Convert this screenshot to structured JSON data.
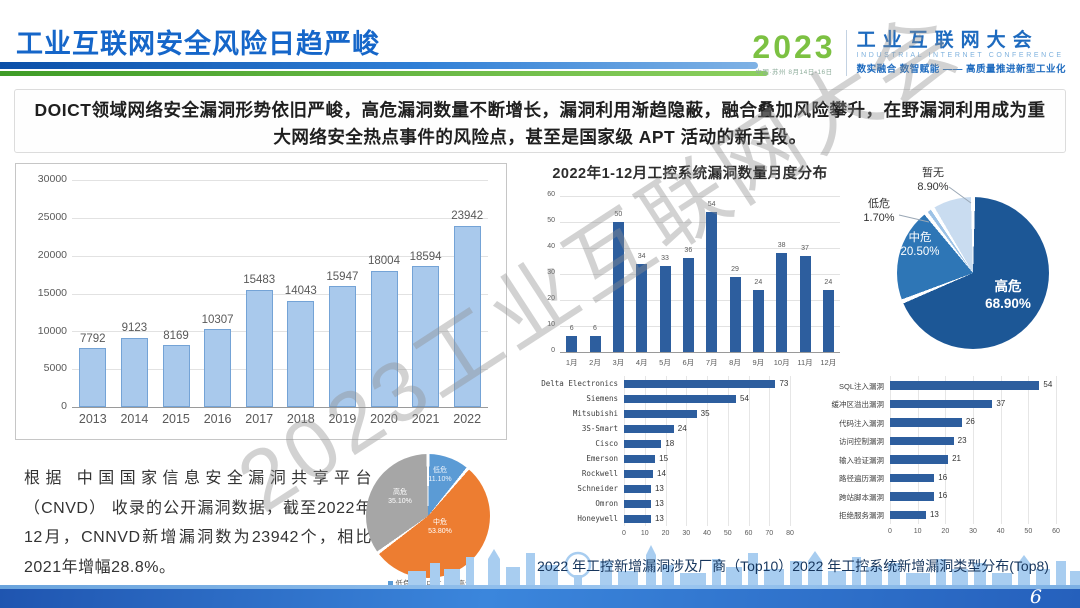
{
  "header": {
    "title": "工业互联网安全风险日趋严峻",
    "logo": {
      "year": "2023",
      "sub": "中国·苏州  8月14日-16日",
      "name": "工业互联网大会",
      "name_en": "INDUSTRIAL INTERNET CONFERENCE",
      "slogan": "数实融合  数智赋能 —— 高质量推进新型工业化"
    }
  },
  "banner": {
    "line1": "DOICT领域网络安全漏洞形势依旧严峻，高危漏洞数量不断增长，漏洞利用渐趋隐蔽，融合叠加风险攀升，在野漏洞利用成为重",
    "line2": "大网络安全热点事件的风险点，甚至是国家级 APT 活动的新手段。"
  },
  "note": "根据 中国国家信息安全漏洞共享平台（CNVD） 收录的公开漏洞数据，截至2022年12月，CNNVD新增漏洞数为23942个，相比2021年增幅28.8%。",
  "caption": "2022 年工控新增漏洞涉及厂商（Top10）2022 年工控系统新增漏洞类型分布(Top8)",
  "watermark": "2023工业互联网大会",
  "page_number": "6",
  "chart_data": [
    {
      "id": "cnvd-annual",
      "type": "bar",
      "title": "",
      "categories": [
        "2013",
        "2014",
        "2015",
        "2016",
        "2017",
        "2018",
        "2019",
        "2020",
        "2021",
        "2022"
      ],
      "values": [
        7792,
        9123,
        8169,
        10307,
        15483,
        14043,
        15947,
        18004,
        18594,
        23942
      ],
      "ylim": [
        0,
        30000
      ],
      "yticks": [
        0,
        5000,
        10000,
        15000,
        20000,
        25000,
        30000
      ],
      "bar_fill": "#a9c9ec",
      "bar_border": "#74a3d6",
      "grid": true
    },
    {
      "id": "monthly",
      "type": "bar",
      "title": "2022年1-12月工控系统漏洞数量月度分布",
      "categories": [
        "1月",
        "2月",
        "3月",
        "4月",
        "5月",
        "6月",
        "7月",
        "8月",
        "9月",
        "10月",
        "11月",
        "12月"
      ],
      "values": [
        6,
        6,
        50,
        34,
        33,
        36,
        54,
        29,
        24,
        38,
        37,
        24
      ],
      "ylim": [
        0,
        60
      ],
      "yticks": [
        0,
        10,
        20,
        30,
        40,
        50,
        60
      ],
      "bar_fill": "#2d5e9e",
      "grid": true
    },
    {
      "id": "severity-pie",
      "type": "pie",
      "slices": [
        {
          "label": "高危",
          "pct": "68.90%",
          "value": 68.9,
          "color": "#1c5796"
        },
        {
          "label": "中危",
          "pct": "20.50%",
          "value": 20.5,
          "color": "#2e76b6"
        },
        {
          "label": "低危",
          "pct": "1.70%",
          "value": 1.7,
          "color": "#9cc2e6"
        },
        {
          "label": "暂无",
          "pct": "8.90%",
          "value": 8.9,
          "color": "#c9dcf0"
        }
      ]
    },
    {
      "id": "vendors-top10",
      "type": "bar-horizontal",
      "categories": [
        "Delta Electronics",
        "Siemens",
        "Mitsubishi",
        "3S-Smart",
        "Cisco",
        "Emerson",
        "Rockwell",
        "Schneider",
        "Omron",
        "Honeywell"
      ],
      "values": [
        73,
        54,
        35,
        24,
        18,
        15,
        14,
        13,
        13,
        13
      ],
      "xlim": [
        0,
        80
      ],
      "xticks": [
        0,
        10,
        20,
        30,
        40,
        50,
        60,
        70,
        80
      ],
      "bar_fill": "#2d5e9e",
      "grid": true
    },
    {
      "id": "vuln-types-top8",
      "type": "bar-horizontal",
      "categories": [
        "SQL注入漏洞",
        "缓冲区溢出漏洞",
        "代码注入漏洞",
        "访问控制漏洞",
        "输入验证漏洞",
        "路径遍历漏洞",
        "跨站脚本漏洞",
        "拒绝服务漏洞"
      ],
      "values": [
        54,
        37,
        26,
        23,
        21,
        16,
        16,
        13
      ],
      "xlim": [
        0,
        60
      ],
      "xticks": [
        0,
        10,
        20,
        30,
        40,
        50,
        60
      ],
      "bar_fill": "#2d5e9e",
      "grid": true
    },
    {
      "id": "cnvd-severity-pie",
      "type": "pie",
      "slices": [
        {
          "label": "低危",
          "pct": "11.10%",
          "value": 11.1,
          "color": "#5b9bd5"
        },
        {
          "label": "中危",
          "pct": "53.80%",
          "value": 53.8,
          "color": "#ed7d31"
        },
        {
          "label": "高危",
          "pct": "35.10%",
          "value": 35.1,
          "color": "#a6a6a6"
        }
      ],
      "legend": [
        "低危",
        "中危",
        "高危"
      ]
    }
  ]
}
